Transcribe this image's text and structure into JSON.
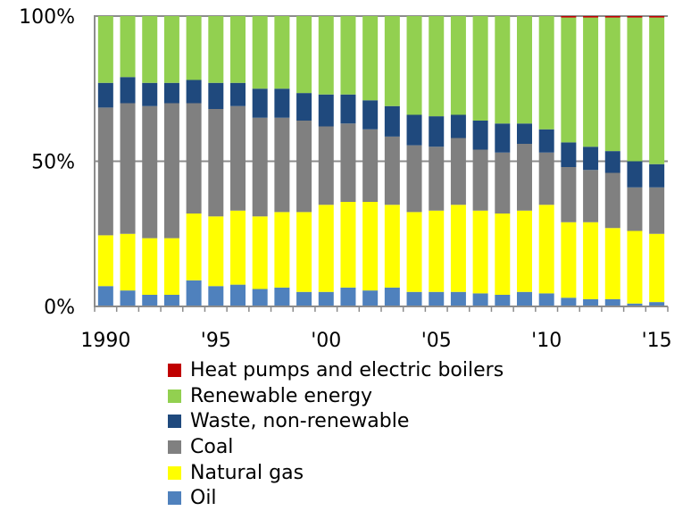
{
  "chart_data": {
    "type": "bar",
    "stacked": true,
    "percent": true,
    "categories": [
      "1990",
      "1991",
      "1992",
      "1993",
      "1994",
      "1995",
      "1996",
      "1997",
      "1998",
      "1999",
      "2000",
      "2001",
      "2002",
      "2003",
      "2004",
      "2005",
      "2006",
      "2007",
      "2008",
      "2009",
      "2010",
      "2011",
      "2012",
      "2013",
      "2014",
      "2015"
    ],
    "x_tick_labels": [
      {
        "category": "1990",
        "label": "1990"
      },
      {
        "category": "1995",
        "label": "'95"
      },
      {
        "category": "2000",
        "label": "'00"
      },
      {
        "category": "2005",
        "label": "'05"
      },
      {
        "category": "2010",
        "label": "'10"
      },
      {
        "category": "2015",
        "label": "'15"
      }
    ],
    "y_tick_labels": [
      {
        "value": 0,
        "label": "0%"
      },
      {
        "value": 50,
        "label": "50%"
      },
      {
        "value": 100,
        "label": "100%"
      }
    ],
    "ylim": [
      0,
      100
    ],
    "grid": "horizontal at 50% and 100%",
    "legend_position": "bottom",
    "series": [
      {
        "name": "Oil",
        "color": "#4f81bd",
        "values": [
          7,
          5.5,
          4,
          4,
          9,
          7,
          7.5,
          6,
          6.5,
          5,
          5,
          6.5,
          5.5,
          6.5,
          5,
          5,
          5,
          4.5,
          4,
          5,
          4.5,
          3,
          2.5,
          2.5,
          1,
          1.5
        ]
      },
      {
        "name": "Natural gas",
        "color": "#ffff00",
        "values": [
          17.5,
          19.5,
          19.5,
          19.5,
          23,
          24,
          25.5,
          25,
          26,
          27.5,
          30,
          29.5,
          30.5,
          28.5,
          27.5,
          28,
          30,
          28.5,
          28,
          28,
          30.5,
          26,
          26.5,
          24.5,
          25,
          23.5
        ]
      },
      {
        "name": "Coal",
        "color": "#808080",
        "values": [
          44,
          45,
          45.5,
          46.5,
          38,
          37,
          36,
          34,
          32.5,
          31.5,
          27,
          27,
          25,
          23.5,
          23,
          22,
          23,
          21,
          21,
          23,
          18,
          19,
          18,
          19,
          15,
          16
        ]
      },
      {
        "name": "Waste, non-renewable",
        "color": "#1f497d",
        "values": [
          8.5,
          9,
          8,
          7,
          8,
          9,
          8,
          10,
          10,
          9.5,
          11,
          10,
          10,
          10.5,
          10.5,
          10.5,
          8,
          10,
          10,
          7,
          8,
          8.5,
          8,
          7.5,
          9,
          8
        ]
      },
      {
        "name": "Renewable energy",
        "color": "#92d050",
        "values": [
          23,
          21,
          23,
          23,
          22,
          23,
          23,
          25,
          25,
          26.5,
          27,
          27,
          29,
          31,
          34,
          34.5,
          34,
          36,
          37,
          37,
          39,
          43,
          44.5,
          46,
          49.5,
          50.5
        ]
      },
      {
        "name": "Heat pumps and electric boilers",
        "color": "#c00000",
        "values": [
          0,
          0,
          0,
          0,
          0,
          0,
          0,
          0,
          0,
          0,
          0,
          0,
          0,
          0,
          0,
          0,
          0,
          0,
          0,
          0,
          0,
          0.5,
          0.5,
          0.5,
          0.5,
          0.5
        ]
      }
    ],
    "legend_order": [
      "Heat pumps and electric boilers",
      "Renewable energy",
      "Waste, non-renewable",
      "Coal",
      "Natural gas",
      "Oil"
    ]
  }
}
